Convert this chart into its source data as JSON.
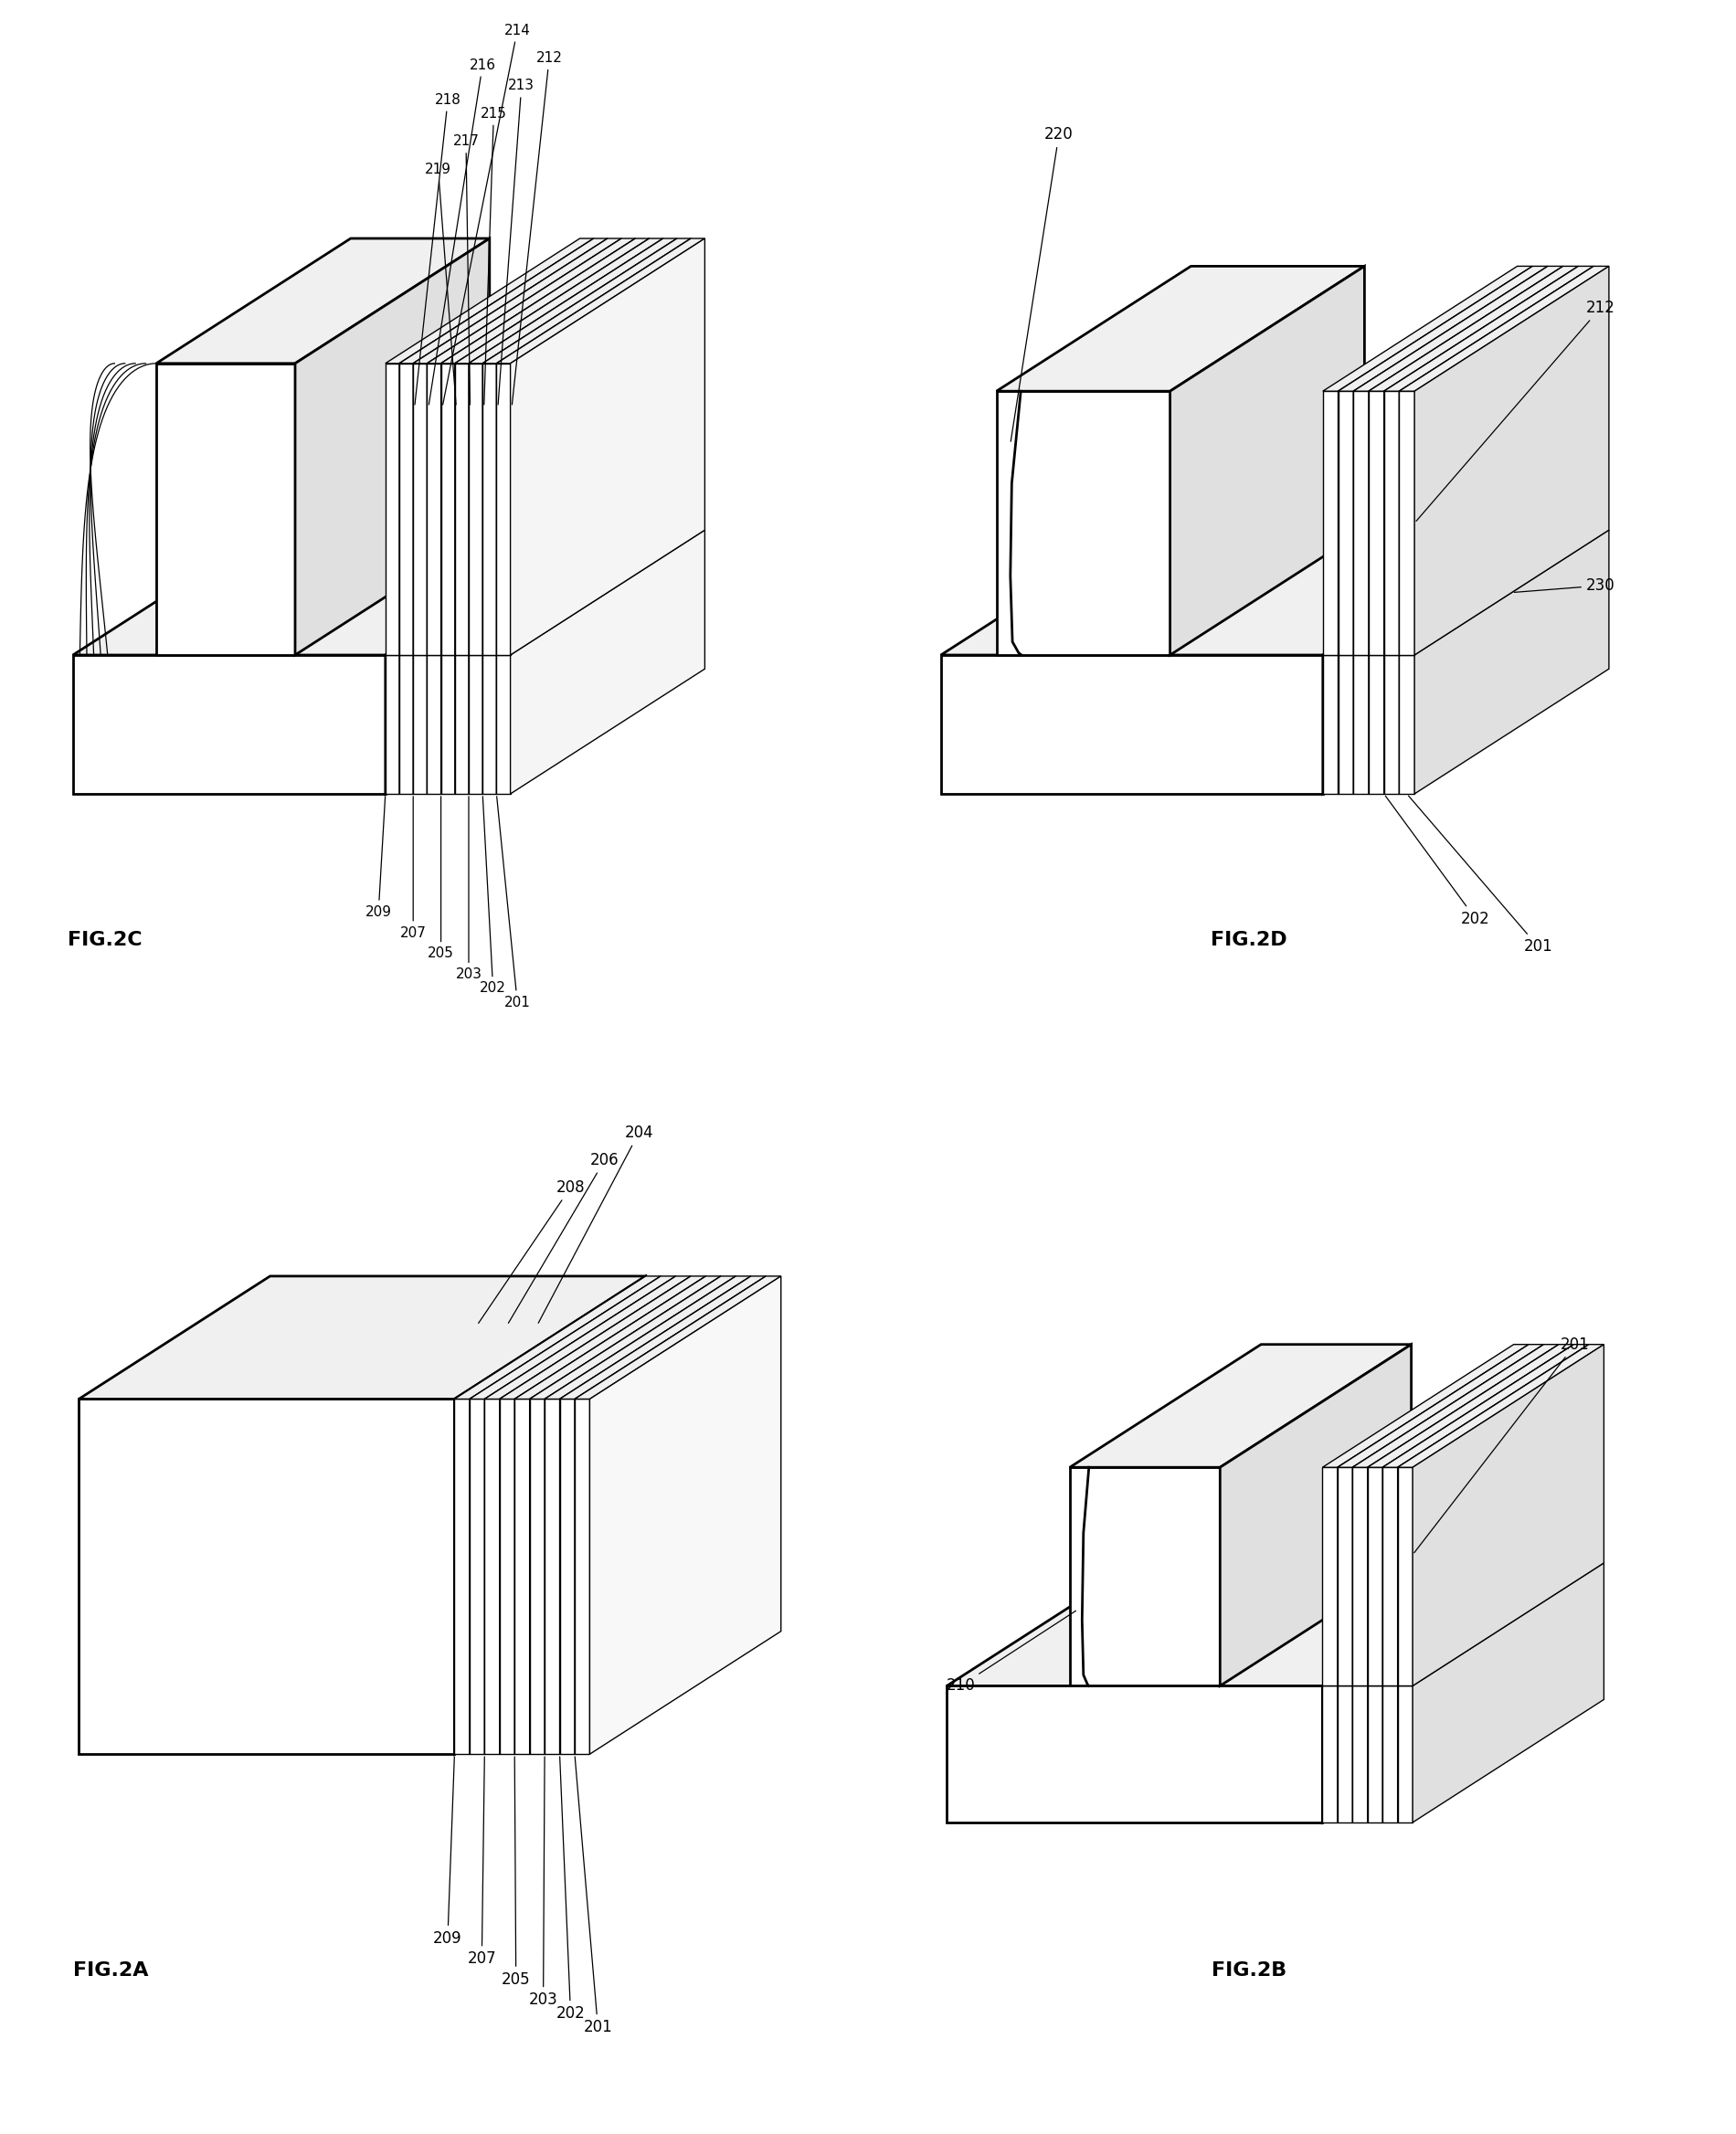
{
  "bg_color": "#ffffff",
  "lc": "#000000",
  "lw_main": 2.0,
  "lw_layer": 1.0,
  "font_label": 16,
  "font_annot": 13,
  "fig2a_label": "FIG.2A",
  "fig2b_label": "FIG.2B",
  "fig2c_label": "FIG.2C",
  "fig2d_label": "FIG.2D",
  "fig2a_bot_labels": [
    "209",
    "207",
    "205",
    "203",
    "202",
    "201"
  ],
  "fig2a_top_labels": [
    "208",
    "206",
    "204"
  ],
  "fig2b_labels": [
    "210",
    "201"
  ],
  "fig2c_bot_labels": [
    "209",
    "207",
    "205",
    "203",
    "202",
    "201"
  ],
  "fig2c_top_labels": [
    "218",
    "216",
    "214",
    "219",
    "217",
    "215",
    "213",
    "212"
  ],
  "fig2d_labels": [
    "220",
    "212",
    "230",
    "202",
    "201"
  ]
}
